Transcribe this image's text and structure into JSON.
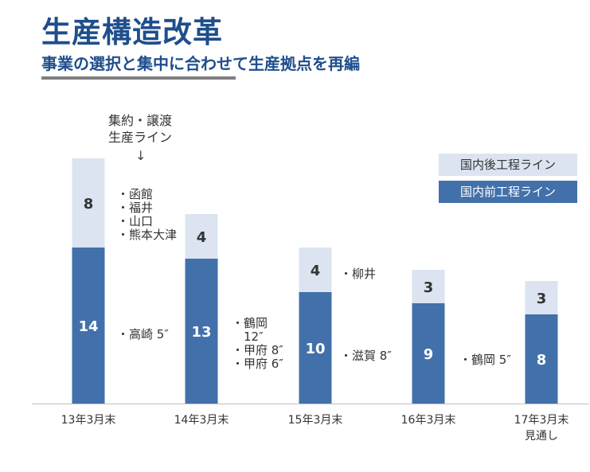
{
  "header": {
    "title": "生産構造改革",
    "subtitle": "事業の選択と集中に合わせて生産拠点を再編"
  },
  "colors": {
    "title": "#1f4e8c",
    "front_process": "#4270aa",
    "back_process": "#dbe4f0",
    "axis": "#bfbfbf"
  },
  "annotations": {
    "top_note": "集約・譲渡\n生産ライン",
    "arrow": "↓",
    "g0_back": [
      "・函館",
      "・福井",
      "・山口",
      "・熊本大津"
    ],
    "g0_front": [
      "・高崎 5″"
    ],
    "g1_front": [
      "・鶴岡",
      "　12″",
      "・甲府 8″",
      "・甲府 6″"
    ],
    "g2_back": [
      "・柳井"
    ],
    "g2_front": [
      "・滋賀 8″"
    ],
    "g3_front": [
      "・鶴岡 5″"
    ]
  },
  "chart_data": {
    "type": "bar",
    "stacked": true,
    "categories": [
      "13年3月末",
      "14年3月末",
      "15年3月末",
      "16年3月末",
      "17年3月末\n見通し"
    ],
    "series": [
      {
        "name": "国内前工程ライン",
        "values": [
          14,
          13,
          10,
          9,
          8
        ]
      },
      {
        "name": "国内後工程ライン",
        "values": [
          8,
          4,
          4,
          3,
          3
        ]
      }
    ],
    "legend_order": [
      "国内後工程ライン",
      "国内前工程ライン"
    ],
    "legend_position": "top-right",
    "ylim": [
      0,
      22
    ],
    "grid": false
  }
}
